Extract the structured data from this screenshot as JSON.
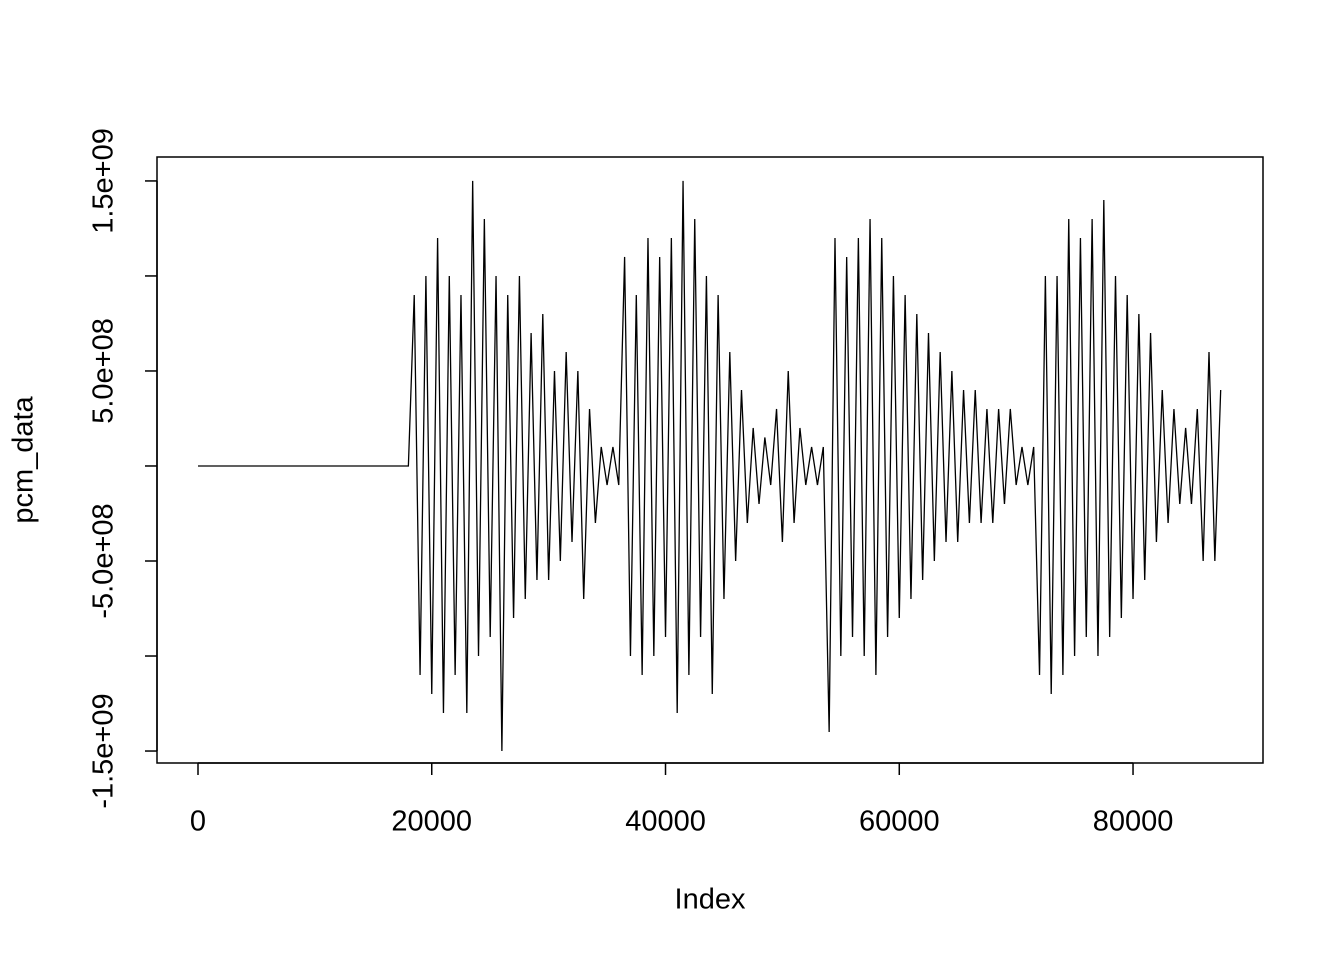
{
  "chart_data": {
    "type": "line",
    "xlabel": "Index",
    "ylabel": "pcm_data",
    "color": "#000000",
    "xlim": [
      -3508,
      91120
    ],
    "ylim": [
      -1563000000,
      1626000000
    ],
    "xticks": [
      0,
      20000,
      40000,
      60000,
      80000
    ],
    "yticks": [
      {
        "value": -1500000000,
        "label": "-1.5e+09"
      },
      {
        "value": -1000000000,
        "label": null
      },
      {
        "value": -500000000,
        "label": "-5.0e+08"
      },
      {
        "value": 0,
        "label": null
      },
      {
        "value": 500000000,
        "label": "5.0e+08"
      },
      {
        "value": 1000000000,
        "label": null
      },
      {
        "value": 1500000000,
        "label": "1.5e+09"
      }
    ],
    "x": [
      1,
      18000,
      18500,
      19000,
      19500,
      20000,
      20500,
      21000,
      21500,
      22000,
      22500,
      23000,
      23500,
      24000,
      24500,
      25000,
      25500,
      26000,
      26500,
      27000,
      27500,
      28000,
      28500,
      29000,
      29500,
      30000,
      30500,
      31000,
      31500,
      32000,
      32500,
      33000,
      33500,
      34000,
      34500,
      35000,
      35500,
      36000,
      36500,
      37000,
      37500,
      38000,
      38500,
      39000,
      39500,
      40000,
      40500,
      41000,
      41500,
      42000,
      42500,
      43000,
      43500,
      44000,
      44500,
      45000,
      45500,
      46000,
      46500,
      47000,
      47500,
      48000,
      48500,
      49000,
      49500,
      50000,
      50500,
      51000,
      51500,
      52000,
      52500,
      53000,
      53500,
      54000,
      54500,
      55000,
      55500,
      56000,
      56500,
      57000,
      57500,
      58000,
      58500,
      59000,
      59500,
      60000,
      60500,
      61000,
      61500,
      62000,
      62500,
      63000,
      63500,
      64000,
      64500,
      65000,
      65500,
      66000,
      66500,
      67000,
      67500,
      68000,
      68500,
      69000,
      69500,
      70000,
      70500,
      71000,
      71500,
      72000,
      72500,
      73000,
      73500,
      74000,
      74500,
      75000,
      75500,
      76000,
      76500,
      77000,
      77500,
      78000,
      78500,
      79000,
      79500,
      80000,
      80500,
      81000,
      81500,
      82000,
      82500,
      83000,
      83500,
      84000,
      84500,
      85000,
      85500,
      86000,
      86500,
      87000,
      87500
    ],
    "values": [
      0,
      0,
      900000000.0,
      -1100000000.0,
      1000000000.0,
      -1200000000.0,
      1200000000.0,
      -1300000000.0,
      1000000000.0,
      -1100000000.0,
      900000000.0,
      -1300000000.0,
      1500000000.0,
      -1000000000.0,
      1300000000.0,
      -900000000.0,
      1000000000.0,
      -1500000000.0,
      900000000.0,
      -800000000.0,
      1000000000.0,
      -700000000.0,
      700000000.0,
      -600000000.0,
      800000000.0,
      -600000000.0,
      500000000.0,
      -500000000.0,
      600000000.0,
      -400000000.0,
      500000000.0,
      -700000000.0,
      300000000.0,
      -300000000.0,
      100000000.0,
      -100000000.0,
      100000000.0,
      -100000000.0,
      1100000000.0,
      -1000000000.0,
      900000000.0,
      -1100000000.0,
      1200000000.0,
      -1000000000.0,
      1100000000.0,
      -900000000.0,
      1200000000.0,
      -1300000000.0,
      1500000000.0,
      -1100000000.0,
      1300000000.0,
      -900000000.0,
      1000000000.0,
      -1200000000.0,
      900000000.0,
      -700000000.0,
      600000000.0,
      -500000000.0,
      400000000.0,
      -300000000.0,
      200000000.0,
      -200000000.0,
      150000000.0,
      -100000000.0,
      300000000.0,
      -400000000.0,
      500000000.0,
      -300000000.0,
      200000000.0,
      -100000000.0,
      100000000.0,
      -100000000.0,
      100000000.0,
      -1400000000.0,
      1200000000.0,
      -1000000000.0,
      1100000000.0,
      -900000000.0,
      1200000000.0,
      -1000000000.0,
      1300000000.0,
      -1100000000.0,
      1200000000.0,
      -900000000.0,
      1000000000.0,
      -800000000.0,
      900000000.0,
      -700000000.0,
      800000000.0,
      -600000000.0,
      700000000.0,
      -500000000.0,
      600000000.0,
      -400000000.0,
      500000000.0,
      -400000000.0,
      400000000.0,
      -300000000.0,
      400000000.0,
      -300000000.0,
      300000000.0,
      -300000000.0,
      300000000.0,
      -200000000.0,
      300000000.0,
      -100000000.0,
      100000000.0,
      -100000000.0,
      100000000.0,
      -1100000000.0,
      1000000000.0,
      -1200000000.0,
      1000000000.0,
      -1100000000.0,
      1300000000.0,
      -1000000000.0,
      1200000000.0,
      -900000000.0,
      1300000000.0,
      -1000000000.0,
      1400000000.0,
      -900000000.0,
      1000000000.0,
      -800000000.0,
      900000000.0,
      -700000000.0,
      800000000.0,
      -600000000.0,
      700000000.0,
      -400000000.0,
      400000000.0,
      -300000000.0,
      300000000.0,
      -200000000.0,
      200000000.0,
      -200000000.0,
      300000000.0,
      -500000000.0,
      600000000.0,
      -500000000.0,
      400000000.0
    ]
  }
}
